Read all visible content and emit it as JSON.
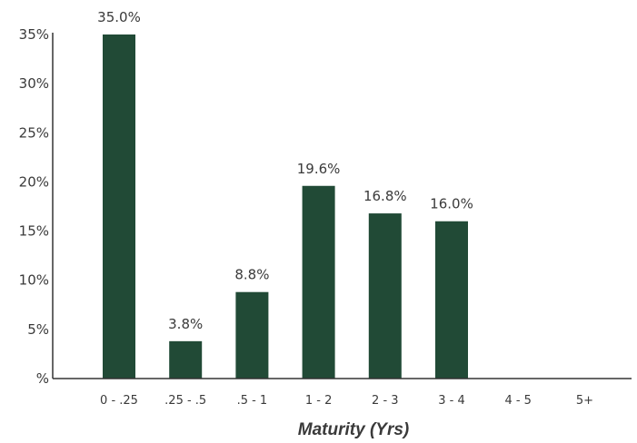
{
  "chart_data": {
    "type": "bar",
    "categories": [
      "0 - .25",
      ".25 - .5",
      ".5 - 1",
      "1 - 2",
      "2 - 3",
      "3 - 4",
      "4 - 5",
      "5+"
    ],
    "values": [
      35.0,
      3.8,
      8.8,
      19.6,
      16.8,
      16.0,
      0,
      0
    ],
    "data_labels": [
      "35.0%",
      "3.8%",
      "8.8%",
      "19.6%",
      "16.8%",
      "16.0%",
      "",
      ""
    ],
    "xlabel": "Maturity (Yrs)",
    "ylabel": "",
    "ylim": [
      0,
      35
    ],
    "y_ticks": [
      0,
      5,
      10,
      15,
      20,
      25,
      30,
      35
    ],
    "y_tick_labels": [
      "%",
      "5%",
      "10%",
      "15%",
      "20%",
      "25%",
      "30%",
      "35%"
    ],
    "grid": false,
    "colors": {
      "bar": "#214a36",
      "axis": "#333333"
    }
  }
}
